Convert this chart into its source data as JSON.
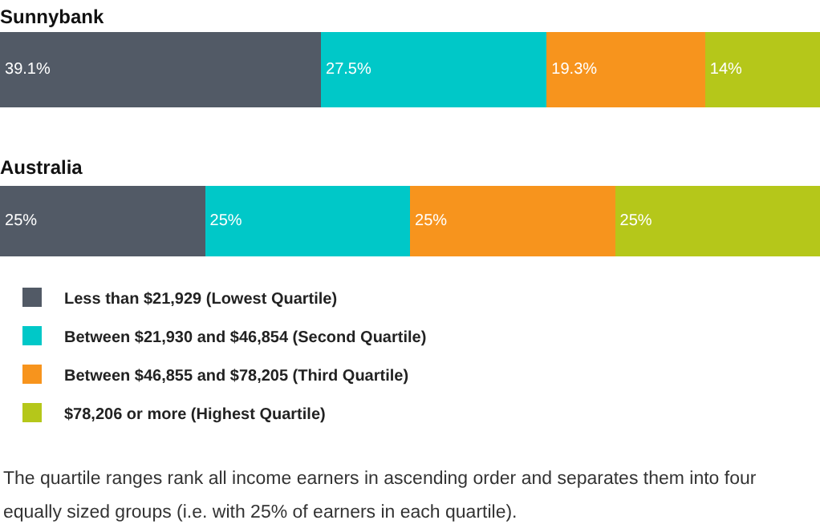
{
  "chart_data": [
    {
      "type": "bar",
      "orientation": "horizontal",
      "stacked": true,
      "title": "Sunnybank",
      "categories": [
        null
      ],
      "series": [
        {
          "color": "#525a66",
          "values": [
            39.1
          ],
          "value_labels": [
            "39.1%"
          ]
        },
        {
          "color": "#00c8c8",
          "values": [
            27.5
          ],
          "value_labels": [
            "27.5%"
          ]
        },
        {
          "color": "#f7941d",
          "values": [
            19.3
          ],
          "value_labels": [
            "19.3%"
          ]
        },
        {
          "color": "#b5c71a",
          "values": [
            14
          ],
          "value_labels": [
            "14%"
          ]
        }
      ]
    },
    {
      "type": "bar",
      "orientation": "horizontal",
      "stacked": true,
      "title": "Australia",
      "categories": [
        null
      ],
      "legend": "bottom left",
      "series": [
        {
          "name": "Less than $21,929 (Lowest Quartile)",
          "color": "#525a66",
          "values": [
            25
          ],
          "value_labels": [
            "25%"
          ]
        },
        {
          "name": "Between $21,930 and $46,854 (Second Quartile)",
          "color": "#00c8c8",
          "values": [
            25
          ],
          "value_labels": [
            "25%"
          ]
        },
        {
          "name": "Between $46,855 and $78,205 (Third Quartile)",
          "color": "#f7941d",
          "values": [
            25
          ],
          "value_labels": [
            "25%"
          ]
        },
        {
          "name": "$78,206 or more (Highest Quartile)",
          "color": "#b5c71a",
          "values": [
            25
          ],
          "value_labels": [
            "25%"
          ]
        }
      ],
      "annotations": [
        "The quartile ranges rank all income earners in ascending order and separates them into four equally sized groups (i.e. with 25% of earners in each quartile)."
      ]
    }
  ]
}
